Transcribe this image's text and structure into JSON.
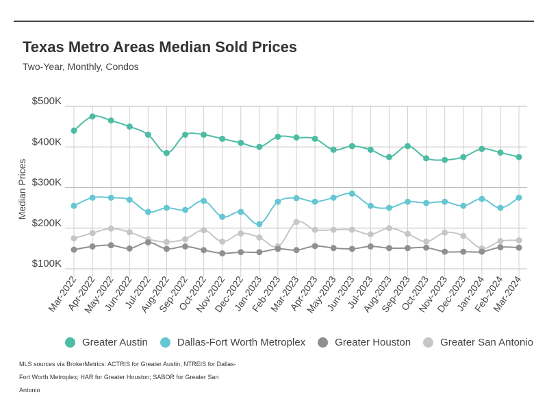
{
  "title": "Texas Metro Areas Median Sold Prices",
  "subtitle": "Two-Year, Monthly, Condos",
  "footnote": "MLS sources via BrokerMetrics: ACTRIS for Greater Austin; NTREIS for Dallas-Fort Worth Metroplex; HAR for Greater Houston; SABOR for Greater San Antonio",
  "chart_data": {
    "type": "line",
    "title": "Texas Metro Areas Median Sold Prices",
    "subtitle": "Two-Year, Monthly, Condos",
    "xlabel": "",
    "ylabel": "Median Prices",
    "ylim": [
      100000,
      500000
    ],
    "yticks": [
      100000,
      200000,
      300000,
      400000,
      500000
    ],
    "ytick_labels": [
      "$100K",
      "$200K",
      "$300K",
      "$400K",
      "$500K"
    ],
    "grid": true,
    "legend": "bottom",
    "categories": [
      "Mar-2022",
      "Apr-2022",
      "May-2022",
      "Jun-2022",
      "Jul-2022",
      "Aug-2022",
      "Sep-2022",
      "Oct-2022",
      "Nov-2022",
      "Dec-2022",
      "Jan-2023",
      "Feb-2023",
      "Mar-2023",
      "Apr-2023",
      "May-2023",
      "Jun-2023",
      "Jul-2023",
      "Aug-2023",
      "Sep-2023",
      "Oct-2023",
      "Nov-2023",
      "Dec-2023",
      "Jan-2024",
      "Feb-2024",
      "Mar-2024"
    ],
    "series": [
      {
        "name": "Greater Austin",
        "color": "#4dbca4",
        "values": [
          440000,
          475000,
          465000,
          450000,
          430000,
          385000,
          430000,
          430000,
          420000,
          410000,
          400000,
          425000,
          423000,
          420000,
          393000,
          402000,
          393000,
          375000,
          402000,
          372000,
          368000,
          375000,
          395000,
          386000,
          375000
        ]
      },
      {
        "name": "Dallas-Fort Worth Metroplex",
        "color": "#66c6d2",
        "values": [
          255000,
          275000,
          275000,
          270000,
          240000,
          250000,
          245000,
          267000,
          228000,
          240000,
          210000,
          265000,
          274000,
          265000,
          275000,
          285000,
          255000,
          250000,
          265000,
          262000,
          265000,
          255000,
          272000,
          250000,
          275000
        ]
      },
      {
        "name": "Greater Houston",
        "color": "#909090",
        "values": [
          147000,
          155000,
          158000,
          150000,
          165000,
          149000,
          155000,
          146000,
          138000,
          141000,
          141000,
          149000,
          146000,
          156000,
          151000,
          149000,
          155000,
          151000,
          151000,
          152000,
          142000,
          142000,
          142000,
          153000,
          152000
        ]
      },
      {
        "name": "Greater San Antonio",
        "color": "#c6c6c6",
        "values": [
          175000,
          188000,
          199000,
          190000,
          173000,
          166000,
          173000,
          195000,
          167000,
          187000,
          177000,
          155000,
          215000,
          196000,
          196000,
          196000,
          185000,
          200000,
          186000,
          167000,
          189000,
          181000,
          150000,
          168000,
          170000
        ]
      }
    ]
  }
}
